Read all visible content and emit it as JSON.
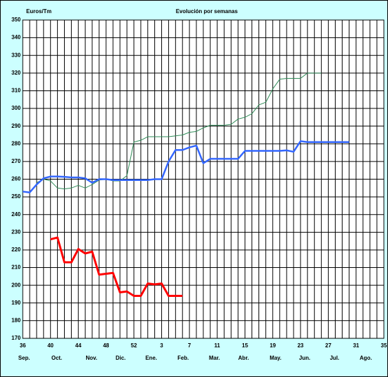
{
  "chart_data": {
    "type": "line",
    "title": "Evolución por semanas",
    "y_label": "Euros/Tm",
    "xlim": [
      0,
      52
    ],
    "ylim": [
      170,
      350
    ],
    "yticks": [
      170,
      180,
      190,
      200,
      210,
      220,
      230,
      240,
      250,
      260,
      270,
      280,
      290,
      300,
      310,
      320,
      330,
      340,
      350
    ],
    "xticks": [
      {
        "value": 0,
        "label": "36"
      },
      {
        "value": 4,
        "label": "40"
      },
      {
        "value": 8,
        "label": "44"
      },
      {
        "value": 12,
        "label": "48"
      },
      {
        "value": 16,
        "label": "52"
      },
      {
        "value": 20,
        "label": "3"
      },
      {
        "value": 24,
        "label": "7"
      },
      {
        "value": 28,
        "label": "11"
      },
      {
        "value": 32,
        "label": "15"
      },
      {
        "value": 36,
        "label": "19"
      },
      {
        "value": 40,
        "label": "23"
      },
      {
        "value": 44,
        "label": "27"
      },
      {
        "value": 48,
        "label": "31"
      },
      {
        "value": 52,
        "label": "35"
      }
    ],
    "month_ticks": [
      {
        "value": 0.2,
        "label": "Sep."
      },
      {
        "value": 4.9,
        "label": "Oct."
      },
      {
        "value": 9.9,
        "label": "Nov."
      },
      {
        "value": 14.1,
        "label": "Dic."
      },
      {
        "value": 18.5,
        "label": "Ene."
      },
      {
        "value": 23.1,
        "label": "Feb."
      },
      {
        "value": 27.6,
        "label": "Mar."
      },
      {
        "value": 31.8,
        "label": "Abr."
      },
      {
        "value": 36.4,
        "label": "May."
      },
      {
        "value": 40.6,
        "label": "Jun."
      },
      {
        "value": 44.9,
        "label": "Jul."
      },
      {
        "value": 49.4,
        "label": "Ago."
      }
    ],
    "grid": true,
    "series": [
      {
        "color": "#2e8b57",
        "width": 1,
        "x": [
          2,
          3,
          4,
          5,
          6,
          7,
          8,
          9,
          10,
          11,
          12,
          13,
          14,
          15,
          16,
          17,
          18,
          19,
          20,
          21,
          22,
          23,
          24,
          25,
          26,
          27,
          28,
          29,
          30,
          31,
          32,
          33,
          34,
          35,
          36,
          37,
          38,
          39,
          40,
          41,
          42,
          43
        ],
        "values": [
          258,
          260,
          259,
          255,
          254.5,
          255,
          256.5,
          255,
          257,
          259.5,
          260,
          259,
          259,
          262,
          281,
          282,
          284,
          284,
          284,
          284,
          284.5,
          285,
          286.5,
          287,
          289,
          290.5,
          290.5,
          290.5,
          291,
          294,
          295,
          297,
          302,
          303.5,
          311,
          316.5,
          317,
          317,
          317,
          320,
          320,
          320
        ]
      },
      {
        "color": "#3366ff",
        "width": 2.5,
        "x": [
          0,
          1,
          2,
          3,
          4,
          5,
          6,
          7,
          8,
          9,
          10,
          11,
          12,
          13,
          14,
          15,
          16,
          17,
          18,
          19,
          20,
          21,
          22,
          23,
          24,
          25,
          26,
          27,
          28,
          29,
          30,
          31,
          32,
          33,
          34,
          35,
          36,
          37,
          38,
          39,
          40,
          41,
          42,
          43,
          44,
          45,
          46,
          47
        ],
        "values": [
          253,
          252.5,
          257,
          260.5,
          261.5,
          261.5,
          261.3,
          261,
          261,
          260.5,
          258,
          260,
          260,
          259.5,
          259.5,
          259.5,
          259.5,
          259.5,
          259.5,
          260,
          260,
          270,
          276.5,
          276.5,
          278,
          279,
          269,
          271.5,
          271.5,
          271.5,
          271.5,
          271.5,
          276,
          276,
          276,
          276,
          276,
          276,
          276.3,
          275.5,
          281.5,
          281,
          281,
          281,
          281,
          281,
          281,
          281
        ]
      },
      {
        "color": "#ff0000",
        "width": 3,
        "x": [
          4,
          5,
          6,
          7,
          8,
          9,
          10,
          11,
          12,
          13,
          14,
          15,
          16,
          17,
          18,
          19,
          20,
          21,
          22,
          23
        ],
        "values": [
          226,
          227,
          213,
          213,
          220.5,
          218,
          219,
          206,
          206.5,
          207,
          196,
          196.5,
          194,
          194,
          201,
          200.5,
          201,
          194,
          194,
          194
        ]
      }
    ]
  }
}
